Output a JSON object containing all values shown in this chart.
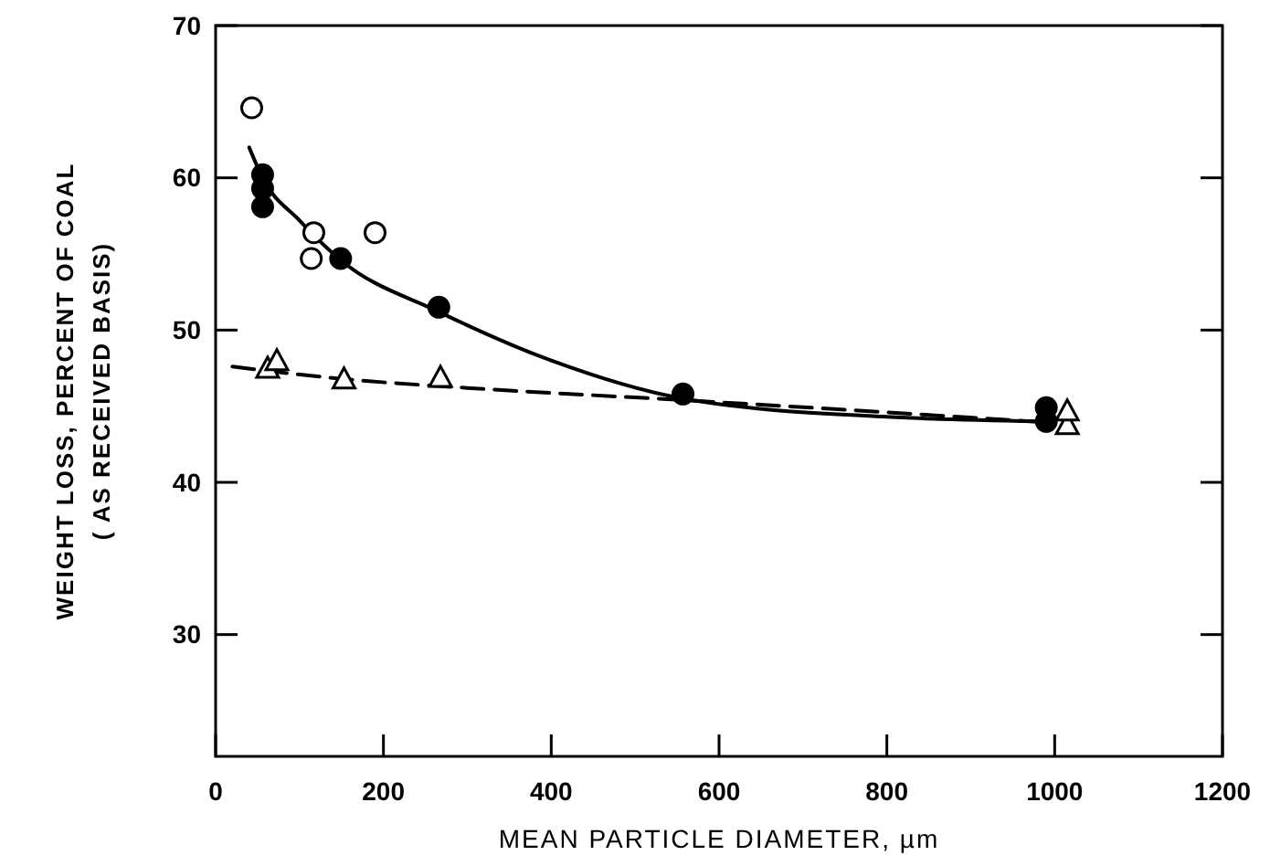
{
  "chart_data": {
    "type": "scatter",
    "xlabel": "MEAN PARTICLE DIAMETER, µm",
    "ylabel": "WEIGHT LOSS, PERCENT OF COAL\n( AS RECEIVED BASIS)",
    "xlim": [
      0,
      1200
    ],
    "xticks": [
      0,
      200,
      400,
      600,
      800,
      1000,
      1200
    ],
    "ylim": [
      22,
      70
    ],
    "yticks": [
      30,
      40,
      50,
      60,
      70
    ],
    "grid": false,
    "series": [
      {
        "type": "line",
        "color": "#000000",
        "line_style": "solid",
        "marker": "none",
        "x": [
          40,
          56,
          100,
          149,
          266,
          400,
          557,
          800,
          980
        ],
        "values": [
          62,
          60,
          57.2,
          54.6,
          51.2,
          48,
          45.5,
          44.3,
          44
        ]
      },
      {
        "type": "line",
        "color": "#000000",
        "line_style": "dashed",
        "marker": "none",
        "x": [
          20,
          150,
          300,
          557,
          800,
          1000
        ],
        "values": [
          47.6,
          46.8,
          46.2,
          45.4,
          44.6,
          43.9
        ]
      },
      {
        "color": "#ffffff",
        "marker": "circle",
        "x": [
          43,
          117,
          190,
          114
        ],
        "values": [
          64.6,
          56.4,
          56.4,
          54.7
        ]
      },
      {
        "color": "#000000",
        "marker": "circle",
        "x": [
          56,
          56,
          56,
          149,
          266,
          557,
          990,
          990
        ],
        "values": [
          60.2,
          59.3,
          58.1,
          54.7,
          51.5,
          45.8,
          44.9,
          44
        ]
      },
      {
        "color": "#ffffff",
        "marker": "triangle",
        "x": [
          62,
          73,
          153,
          268,
          1015,
          1015
        ],
        "values": [
          47.5,
          48,
          46.8,
          46.9,
          43.8,
          44.7
        ]
      }
    ]
  }
}
